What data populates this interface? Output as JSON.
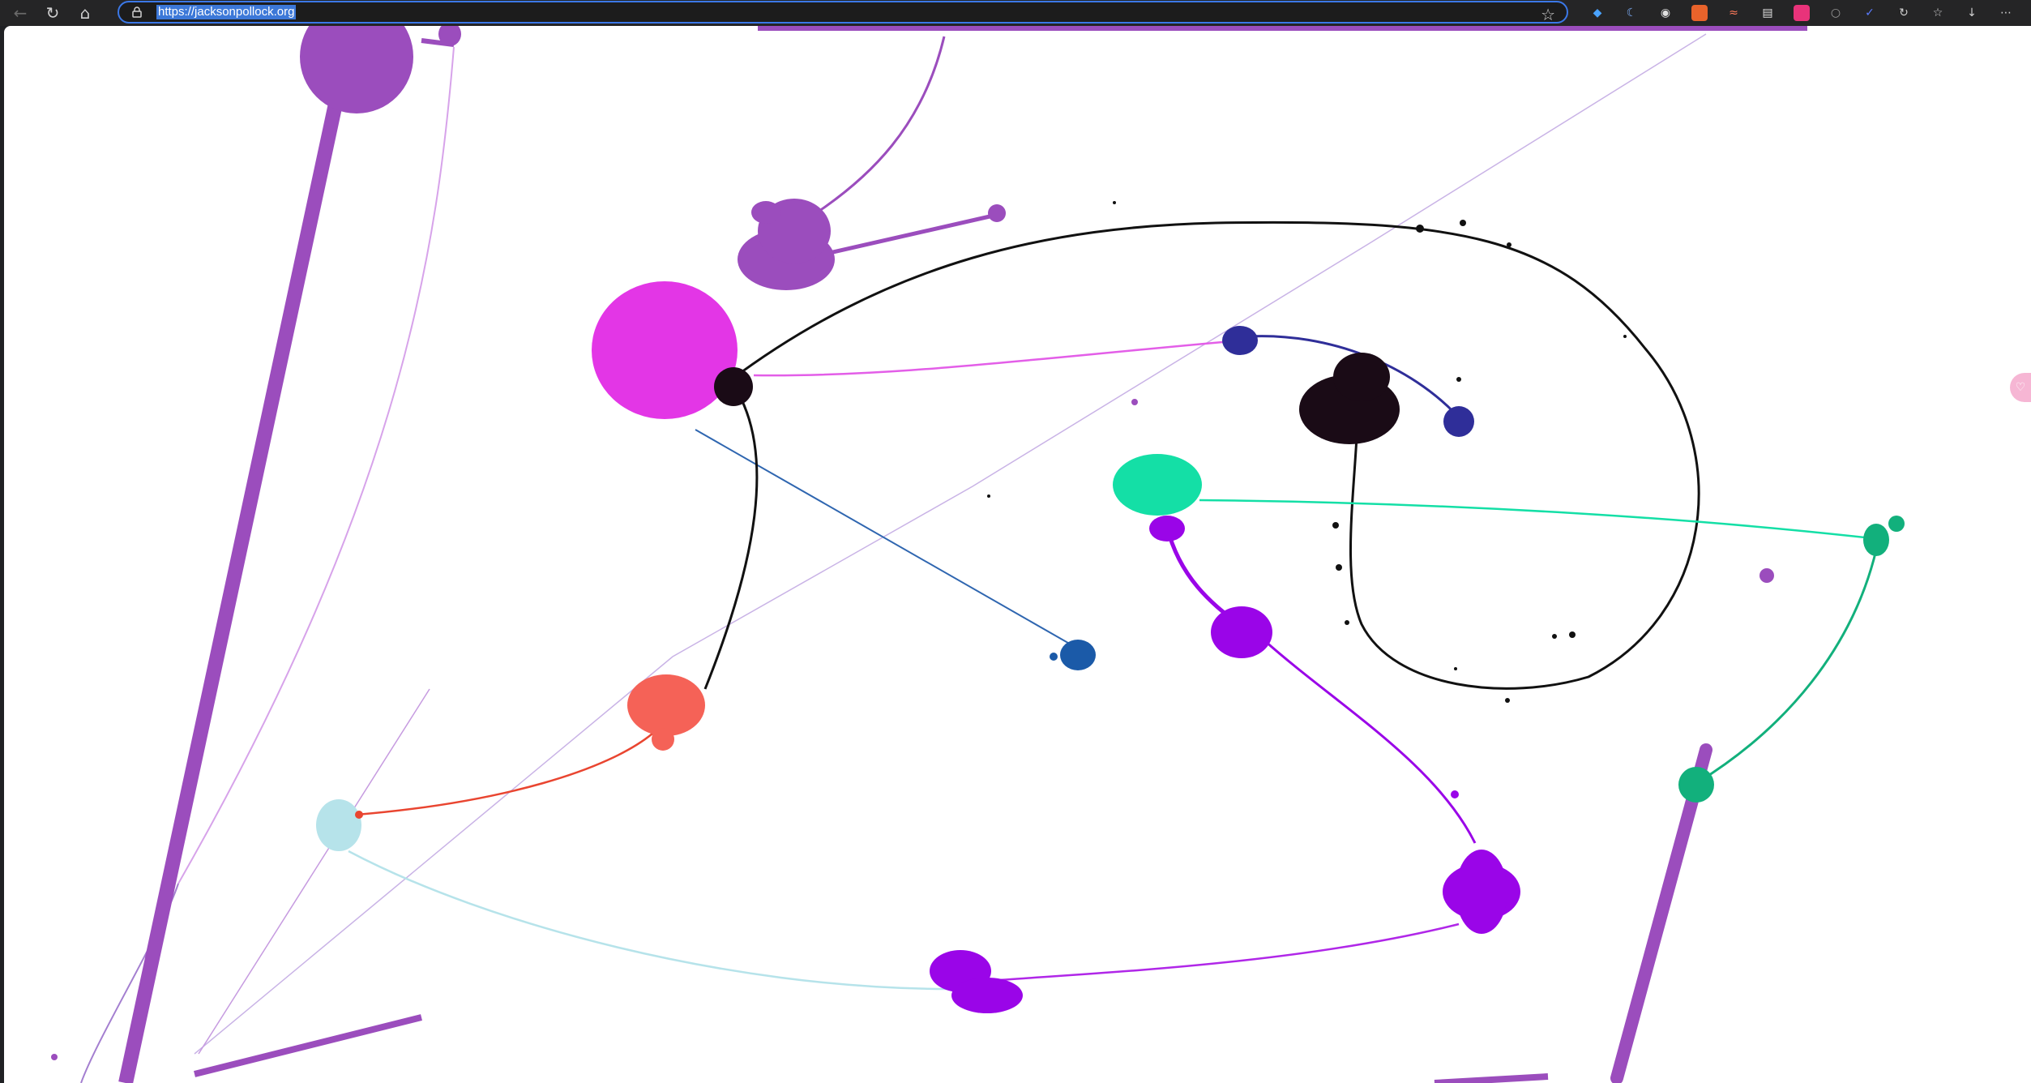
{
  "browser": {
    "url": "https://jacksonpollock.org",
    "icons": {
      "back": "back-arrow-icon",
      "refresh": "refresh-icon",
      "home": "home-icon",
      "lock": "lock-icon",
      "favorite": "star-icon"
    },
    "extensions": [
      "gem-extension-icon",
      "crescent-extension-icon",
      "shield-extension-icon",
      "firefox-extension-icon",
      "signature-extension-icon",
      "document-extension-icon",
      "photo-extension-icon",
      "lock-extension-icon",
      "checkmark-extension-icon",
      "sync-icon",
      "favorites-icon",
      "downloads-icon",
      "more-menu-icon"
    ]
  },
  "canvas": {
    "description_colors": {
      "purple": "#9b4dbd",
      "magenta": "#e336e6",
      "violet": "#9a05e8",
      "navy": "#2f2e99",
      "blue": "#1b5aa8",
      "teal": "#14dfa6",
      "green": "#12b07c",
      "salmon": "#f56257",
      "lightblue": "#b6e3ea",
      "black": "#1a0b16"
    }
  }
}
